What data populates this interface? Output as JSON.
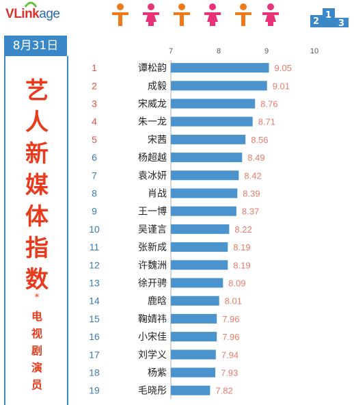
{
  "header": {
    "logo_v": "V",
    "logo_link": "Link",
    "logo_age": "age",
    "podium_digits": [
      "2",
      "1",
      "3"
    ],
    "icon": "people-icons"
  },
  "date": "8月31日",
  "title_chars": [
    "艺",
    "人",
    "新",
    "媒",
    "体",
    "指",
    "数"
  ],
  "asterisk": "*",
  "subtitle_chars": [
    "电",
    "视",
    "剧",
    "演",
    "员"
  ],
  "colors": {
    "accent_red": "#e83a1c",
    "bar_blue": "#4a93cc",
    "value_pink": "#e87a6a",
    "rank_blue": "#3a7ab8"
  },
  "chart_data": {
    "type": "bar",
    "orientation": "horizontal",
    "xlim": [
      7,
      10
    ],
    "xticks": [
      7,
      8,
      9,
      10
    ],
    "grid": false,
    "ranks": [
      "1",
      "2",
      "3",
      "4",
      "5",
      "6",
      "7",
      "8",
      "9",
      "10",
      "11",
      "12",
      "13",
      "14",
      "15",
      "16",
      "17",
      "18",
      "19"
    ],
    "categories": [
      "谭松韵",
      "成毅",
      "宋威龙",
      "朱一龙",
      "宋茜",
      "杨超越",
      "袁冰妍",
      "肖战",
      "王一博",
      "吴谨言",
      "张新成",
      "许魏洲",
      "徐开骋",
      "鹿晗",
      "鞠婧祎",
      "小宋佳",
      "刘学义",
      "杨紫",
      "毛晓彤"
    ],
    "values": [
      9.05,
      9.01,
      8.76,
      8.71,
      8.56,
      8.49,
      8.42,
      8.39,
      8.37,
      8.22,
      8.19,
      8.19,
      8.09,
      8.01,
      7.96,
      7.96,
      7.94,
      7.93,
      7.82
    ],
    "value_labels": [
      "9.05",
      "9.01",
      "8.76",
      "8.71",
      "8.56",
      "8.49",
      "8.42",
      "8.39",
      "8.37",
      "8.22",
      "8.19",
      "8.19",
      "8.09",
      "8.01",
      "7.96",
      "7.96",
      "7.94",
      "7.93",
      "7.82"
    ]
  }
}
